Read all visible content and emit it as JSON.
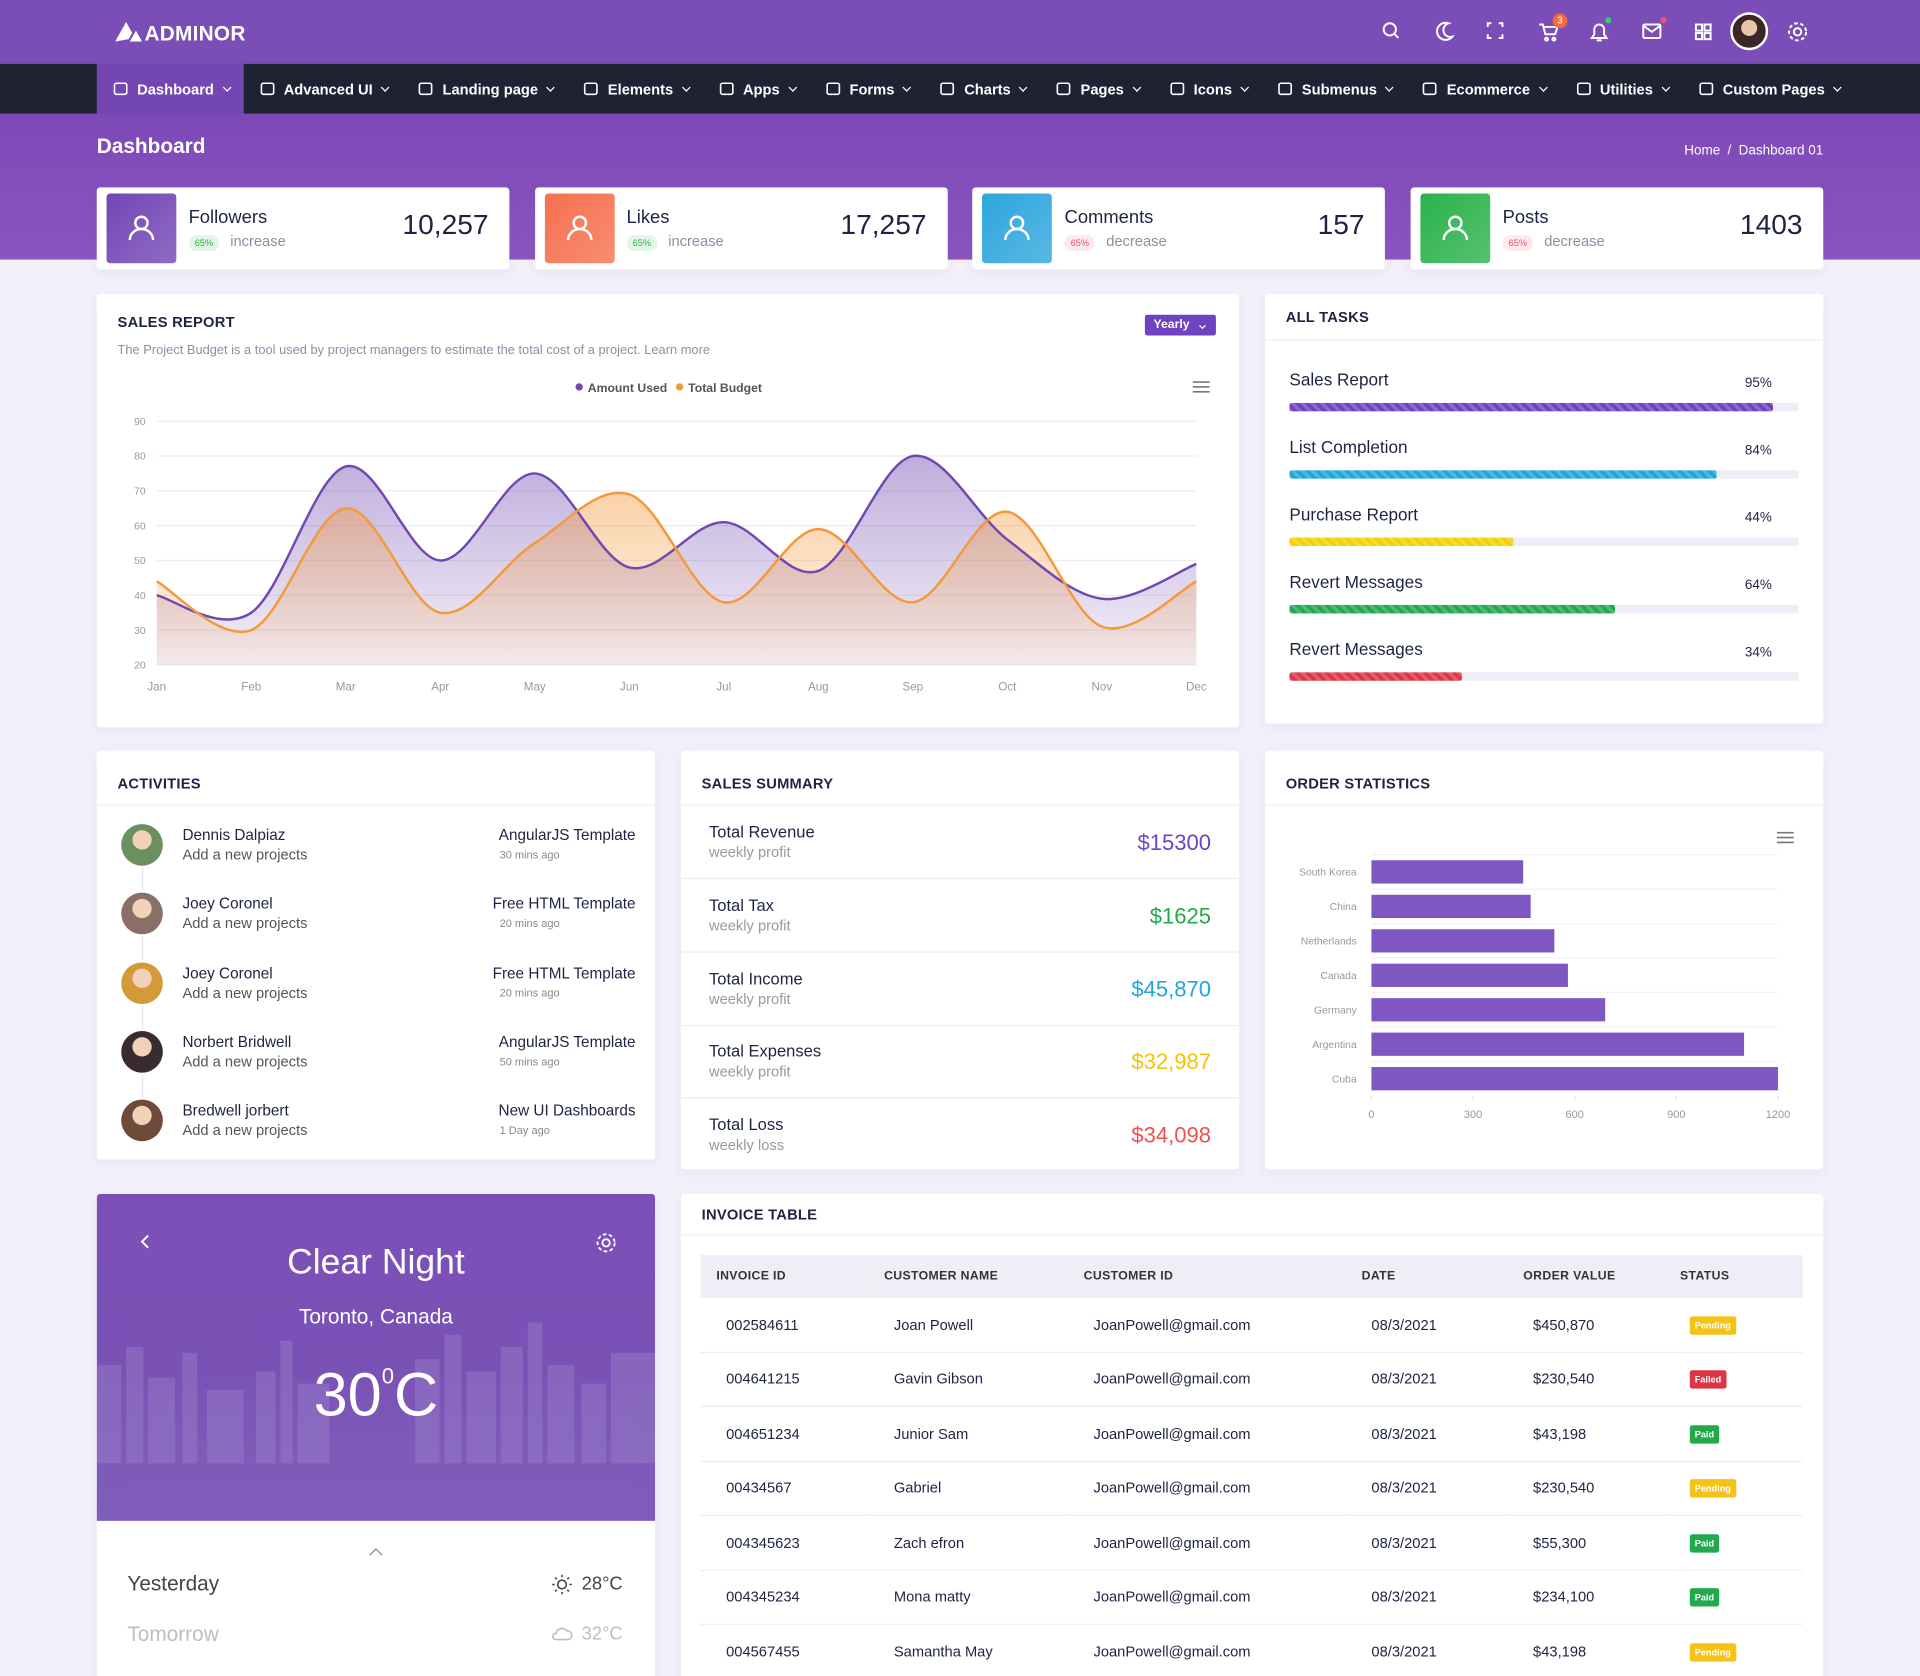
{
  "header": {
    "logo": "ADMINOR",
    "cart_count": "3"
  },
  "nav": [
    "Dashboard",
    "Advanced UI",
    "Landing page",
    "Elements",
    "Apps",
    "Forms",
    "Charts",
    "Pages",
    "Icons",
    "Submenus",
    "Ecommerce",
    "Utilities",
    "Custom Pages"
  ],
  "page": {
    "title": "Dashboard",
    "breadcrumb": [
      "Home",
      "Dashboard 01"
    ],
    "separator": "/"
  },
  "stats": [
    {
      "label": "Followers",
      "value": "10,257",
      "badge": "65%",
      "trend": "increase",
      "color": "#7346b5",
      "badge_color": "#2cb34a"
    },
    {
      "label": "Likes",
      "value": "17,257",
      "badge": "65%",
      "trend": "increase",
      "color": "#f6704f",
      "badge_color": "#2cb34a"
    },
    {
      "label": "Comments",
      "value": "157",
      "badge": "65%",
      "trend": "decrease",
      "color": "#2ea6dd",
      "badge_color": "#f0506e"
    },
    {
      "label": "Posts",
      "value": "1403",
      "badge": "65%",
      "trend": "decrease",
      "color": "#2bb24c",
      "badge_color": "#f0506e"
    }
  ],
  "sales_report": {
    "title": "SALES REPORT",
    "description": "The Project Budget is a tool used by project managers to estimate the total cost of a project. Learn more",
    "filter": "Yearly",
    "chart": {
      "type": "area",
      "categories": [
        "Jan",
        "Feb",
        "Mar",
        "Apr",
        "May",
        "Jun",
        "Jul",
        "Aug",
        "Sep",
        "Oct",
        "Nov",
        "Dec"
      ],
      "series": [
        {
          "name": "Amount Used",
          "color": "#7048b0",
          "values": [
            40,
            35,
            77,
            50,
            75,
            48,
            61,
            47,
            80,
            56,
            39,
            49
          ]
        },
        {
          "name": "Total Budget",
          "color": "#f4993a",
          "values": [
            44,
            30,
            65,
            35,
            55,
            69,
            38,
            59,
            38,
            64,
            31,
            44
          ]
        }
      ],
      "ylim": [
        20,
        90
      ],
      "yticks": [
        20,
        30,
        40,
        50,
        60,
        70,
        80,
        90
      ],
      "grid": true,
      "legend": "top"
    }
  },
  "tasks": {
    "title": "ALL TASKS",
    "items": [
      {
        "name": "Sales Report",
        "label": "95%",
        "value": 95,
        "color": "#6f42c1"
      },
      {
        "name": "List Completion",
        "label": "84%",
        "value": 84,
        "color": "#1ea6da"
      },
      {
        "name": "Purchase Report",
        "label": "44%",
        "value": 44,
        "color": "#f2d200"
      },
      {
        "name": "Revert Messages",
        "label": "64%",
        "value": 64,
        "color": "#22a94b"
      },
      {
        "name": "Revert Messages",
        "label": "34%",
        "value": 34,
        "color": "#dc3545"
      }
    ]
  },
  "activities": {
    "title": "ACTIVITIES",
    "items": [
      {
        "name": "Dennis Dalpiaz",
        "action": "Add a new projects",
        "project": "AngularJS Template",
        "time": "30 mins ago",
        "color": "#6b8f5e"
      },
      {
        "name": "Joey Coronel",
        "action": "Add a new projects",
        "project": "Free HTML Template",
        "time": "20 mins ago",
        "color": "#8a6f66"
      },
      {
        "name": "Joey Coronel",
        "action": "Add a new projects",
        "project": "Free HTML Template",
        "time": "20 mins ago",
        "color": "#d49a3a"
      },
      {
        "name": "Norbert Bridwell",
        "action": "Add a new projects",
        "project": "AngularJS Template",
        "time": "50 mins ago",
        "color": "#3a2b2e"
      },
      {
        "name": "Bredwell jorbert",
        "action": "Add a new projects",
        "project": "New UI Dashboards",
        "time": "1 Day ago",
        "color": "#6e4a3a"
      }
    ]
  },
  "sales_summary": {
    "title": "SALES SUMMARY",
    "items": [
      {
        "label": "Total Revenue",
        "note": "weekly profit",
        "amount": "$15300",
        "color": "#6f42c1"
      },
      {
        "label": "Total Tax",
        "note": "weekly profit",
        "amount": "$1625",
        "color": "#22a94b"
      },
      {
        "label": "Total Income",
        "note": "weekly profit",
        "amount": "$45,870",
        "color": "#1ea6da"
      },
      {
        "label": "Total Expenses",
        "note": "weekly profit",
        "amount": "$32,987",
        "color": "#f2c500"
      },
      {
        "label": "Total Loss",
        "note": "weekly loss",
        "amount": "$34,098",
        "color": "#f05050"
      }
    ]
  },
  "order_statistics": {
    "title": "ORDER STATISTICS",
    "chart": {
      "type": "bar",
      "orientation": "horizontal",
      "categories": [
        "South Korea",
        "China",
        "Netherlands",
        "Canada",
        "Germany",
        "Argentina",
        "Cuba"
      ],
      "values": [
        448,
        470,
        540,
        580,
        690,
        1100,
        1200
      ],
      "color": "#7e57c2",
      "xlim": [
        0,
        1200
      ],
      "xticks": [
        0,
        300,
        600,
        900,
        1200
      ]
    }
  },
  "weather": {
    "condition": "Clear Night",
    "location": "Toronto, Canada",
    "temperature": "30",
    "degree": "0",
    "unit": "C",
    "forecast": [
      {
        "day": "Yesterday",
        "temp": "28°C"
      },
      {
        "day": "Tomorrow",
        "temp": "32°C"
      }
    ]
  },
  "invoice": {
    "title": "INVOICE TABLE",
    "columns": [
      "INVOICE ID",
      "CUSTOMER NAME",
      "CUSTOMER ID",
      "DATE",
      "ORDER VALUE",
      "STATUS"
    ],
    "rows": [
      [
        "002584611",
        "Joan Powell",
        "JoanPowell@gmail.com",
        "08/3/2021",
        "$450,870",
        "Pending"
      ],
      [
        "004641215",
        "Gavin Gibson",
        "JoanPowell@gmail.com",
        "08/3/2021",
        "$230,540",
        "Failed"
      ],
      [
        "004651234",
        "Junior Sam",
        "JoanPowell@gmail.com",
        "08/3/2021",
        "$43,198",
        "Paid"
      ],
      [
        "00434567",
        "Gabriel",
        "JoanPowell@gmail.com",
        "08/3/2021",
        "$230,540",
        "Pending"
      ],
      [
        "004345623",
        "Zach efron",
        "JoanPowell@gmail.com",
        "08/3/2021",
        "$55,300",
        "Paid"
      ],
      [
        "004345234",
        "Mona matty",
        "JoanPowell@gmail.com",
        "08/3/2021",
        "$234,100",
        "Paid"
      ],
      [
        "004567455",
        "Samantha May",
        "JoanPowell@gmail.com",
        "08/3/2021",
        "$43,198",
        "Pending"
      ]
    ],
    "status_colors": {
      "Pending": "#f5c218",
      "Failed": "#dc3545",
      "Paid": "#22a94b"
    }
  }
}
